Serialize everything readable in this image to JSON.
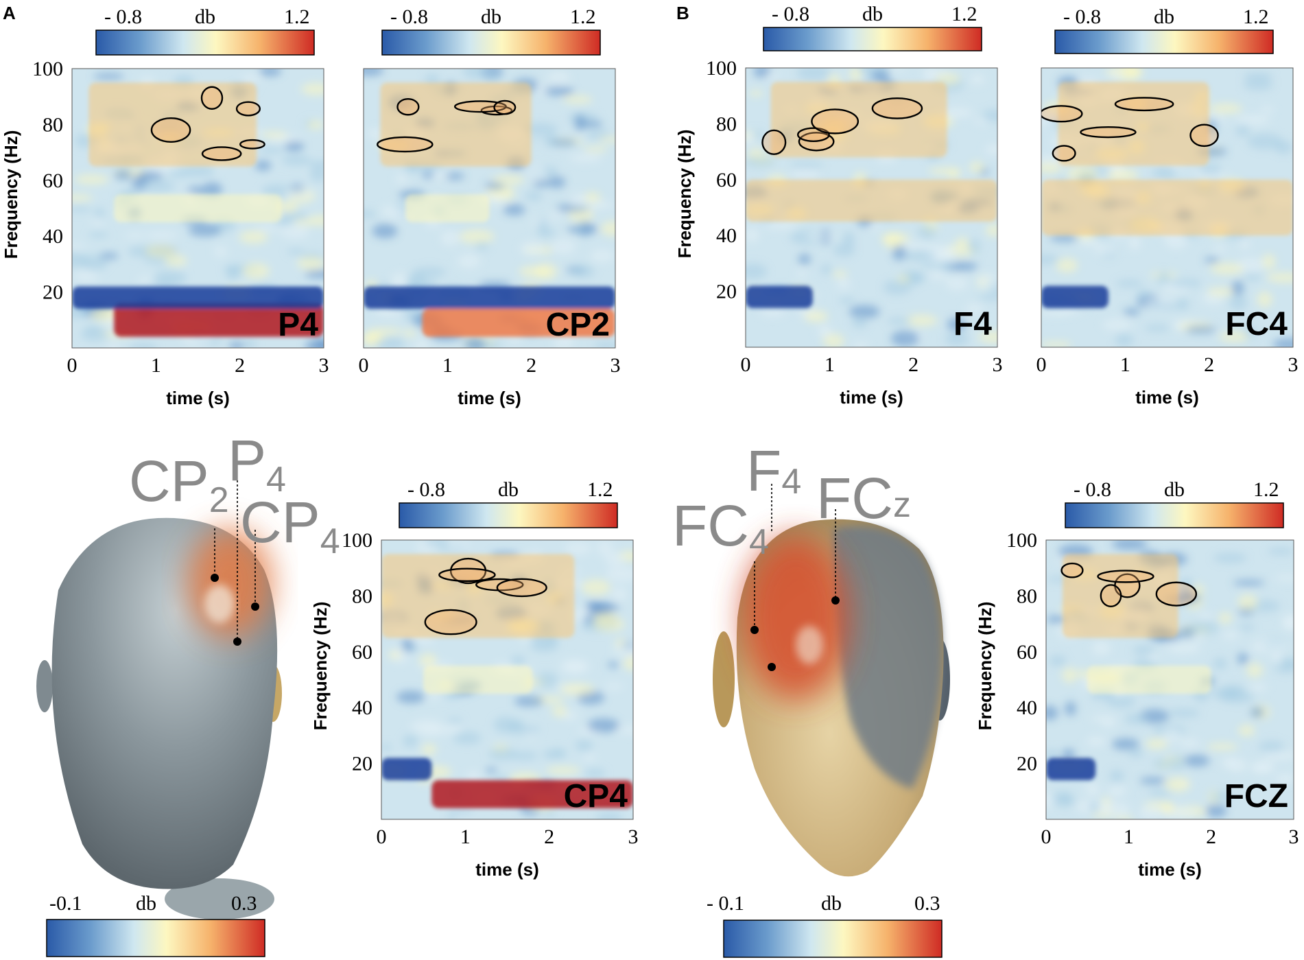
{
  "panel_letters": [
    "A",
    "B"
  ],
  "colors": {
    "scale": [
      "#2a5aa8",
      "#5b8ec7",
      "#a8cde4",
      "#e3f1f5",
      "#fdf7c0",
      "#f8c67a",
      "#ee7a48",
      "#cf2b24"
    ],
    "strong_low": "#173d9a",
    "strong_high": "#b0141c",
    "scalp_dark": "#707d86",
    "scalp_light": "#b9c6cc",
    "scalp_gold": "#d9c394",
    "contour": "#000000",
    "electrode_label": "#8a8a8a"
  },
  "tf_colorbar": {
    "min": "- 0.8",
    "unit": "db",
    "max": "1.2"
  },
  "topo_colorbar_A": {
    "min": "-0.1",
    "unit": "db",
    "max": "0.3"
  },
  "topo_colorbar_B": {
    "min": "- 0.1",
    "unit": "db",
    "max": "0.3"
  },
  "electrodes_A": [
    {
      "main": "CP",
      "sub": "2"
    },
    {
      "main": "P",
      "sub": "4"
    },
    {
      "main": "CP",
      "sub": "4"
    }
  ],
  "electrodes_B": [
    {
      "main": "F",
      "sub": "4"
    },
    {
      "main": "FC",
      "sub": "4"
    },
    {
      "main": "FC",
      "sub": "z"
    }
  ],
  "chart_data": [
    {
      "type": "heatmap",
      "panel": "A",
      "channel": "P4",
      "xlabel": "time (s)",
      "ylabel": "Frequency (Hz)",
      "x_ticks": [
        "0",
        "1",
        "2",
        "3"
      ],
      "y_ticks": [
        "20",
        "40",
        "60",
        "80",
        "100"
      ],
      "xlim": [
        0,
        3
      ],
      "ylim": [
        0,
        100
      ],
      "colorbar": {
        "min": -0.8,
        "max": 1.2,
        "unit": "db"
      },
      "bands": [
        {
          "freq": [
            4,
            16
          ],
          "time": [
            0.5,
            3.0
          ],
          "value": 1.2
        },
        {
          "freq": [
            14,
            22
          ],
          "time": [
            0,
            3
          ],
          "value": -0.8
        },
        {
          "freq": [
            45,
            55
          ],
          "time": [
            0.5,
            2.5
          ],
          "value": 0.4
        },
        {
          "freq": [
            65,
            95
          ],
          "time": [
            0.2,
            2.2
          ],
          "value": 0.5
        }
      ]
    },
    {
      "type": "heatmap",
      "panel": "A",
      "channel": "CP2",
      "xlabel": "time (s)",
      "ylabel": "",
      "x_ticks": [
        "0",
        "1",
        "2",
        "3"
      ],
      "y_ticks": [],
      "xlim": [
        0,
        3
      ],
      "ylim": [
        0,
        100
      ],
      "colorbar": {
        "min": -0.8,
        "max": 1.2,
        "unit": "db"
      },
      "bands": [
        {
          "freq": [
            4,
            14
          ],
          "time": [
            0.7,
            3.0
          ],
          "value": 1.0
        },
        {
          "freq": [
            14,
            22
          ],
          "time": [
            0,
            3
          ],
          "value": -0.8
        },
        {
          "freq": [
            45,
            55
          ],
          "time": [
            0.5,
            1.5
          ],
          "value": 0.3
        },
        {
          "freq": [
            65,
            95
          ],
          "time": [
            0.2,
            2.0
          ],
          "value": 0.5
        }
      ]
    },
    {
      "type": "heatmap",
      "panel": "B",
      "channel": "F4",
      "xlabel": "time (s)",
      "ylabel": "Frequency (Hz)",
      "x_ticks": [
        "0",
        "1",
        "2",
        "3"
      ],
      "y_ticks": [
        "20",
        "40",
        "60",
        "80",
        "100"
      ],
      "xlim": [
        0,
        3
      ],
      "ylim": [
        0,
        100
      ],
      "colorbar": {
        "min": -0.8,
        "max": 1.2,
        "unit": "db"
      },
      "bands": [
        {
          "freq": [
            14,
            22
          ],
          "time": [
            0,
            0.8
          ],
          "value": -0.8
        },
        {
          "freq": [
            45,
            60
          ],
          "time": [
            0,
            3
          ],
          "value": 0.6
        },
        {
          "freq": [
            68,
            95
          ],
          "time": [
            0.3,
            2.4
          ],
          "value": 0.6
        }
      ]
    },
    {
      "type": "heatmap",
      "panel": "B",
      "channel": "FC4",
      "xlabel": "time (s)",
      "ylabel": "",
      "x_ticks": [
        "0",
        "1",
        "2",
        "3"
      ],
      "y_ticks": [],
      "xlim": [
        0,
        3
      ],
      "ylim": [
        0,
        100
      ],
      "colorbar": {
        "min": -0.8,
        "max": 1.2,
        "unit": "db"
      },
      "bands": [
        {
          "freq": [
            14,
            22
          ],
          "time": [
            0,
            0.8
          ],
          "value": -0.8
        },
        {
          "freq": [
            40,
            60
          ],
          "time": [
            0,
            3
          ],
          "value": 0.6
        },
        {
          "freq": [
            65,
            95
          ],
          "time": [
            0.2,
            2.0
          ],
          "value": 0.6
        }
      ]
    },
    {
      "type": "heatmap",
      "panel": "A",
      "channel": "CP4",
      "xlabel": "time (s)",
      "ylabel": "Frequency (Hz)",
      "x_ticks": [
        "0",
        "1",
        "2",
        "3"
      ],
      "y_ticks": [
        "20",
        "40",
        "60",
        "80",
        "100"
      ],
      "xlim": [
        0,
        3
      ],
      "ylim": [
        0,
        100
      ],
      "colorbar": {
        "min": -0.8,
        "max": 1.2,
        "unit": "db"
      },
      "bands": [
        {
          "freq": [
            4,
            14
          ],
          "time": [
            0.6,
            3.0
          ],
          "value": 1.2
        },
        {
          "freq": [
            14,
            22
          ],
          "time": [
            0,
            0.6
          ],
          "value": -0.8
        },
        {
          "freq": [
            45,
            55
          ],
          "time": [
            0.5,
            1.8
          ],
          "value": 0.4
        },
        {
          "freq": [
            65,
            95
          ],
          "time": [
            0,
            2.3
          ],
          "value": 0.5
        }
      ]
    },
    {
      "type": "heatmap",
      "panel": "B",
      "channel": "FCZ",
      "xlabel": "time (s)",
      "ylabel": "Frequency (Hz)",
      "x_ticks": [
        "0",
        "1",
        "2",
        "3"
      ],
      "y_ticks": [
        "20",
        "40",
        "60",
        "80",
        "100"
      ],
      "xlim": [
        0,
        3
      ],
      "ylim": [
        0,
        100
      ],
      "colorbar": {
        "min": -0.8,
        "max": 1.2,
        "unit": "db"
      },
      "bands": [
        {
          "freq": [
            14,
            22
          ],
          "time": [
            0,
            0.6
          ],
          "value": -0.8
        },
        {
          "freq": [
            45,
            55
          ],
          "time": [
            0.5,
            2.0
          ],
          "value": 0.3
        },
        {
          "freq": [
            65,
            95
          ],
          "time": [
            0.2,
            1.6
          ],
          "value": 0.5
        }
      ]
    }
  ]
}
